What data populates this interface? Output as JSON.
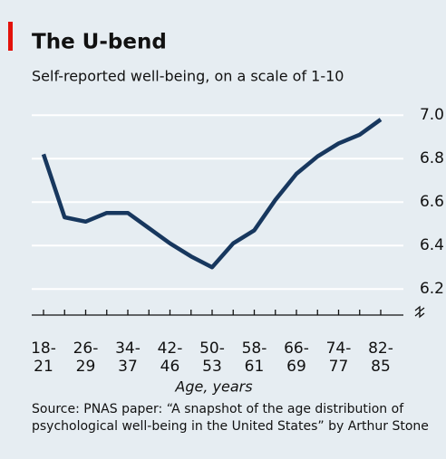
{
  "chart_data": {
    "type": "line",
    "title": "The U-bend",
    "subtitle": "Self-reported well-being, on a scale of 1-10",
    "x_label": "Age, years",
    "source": "Source: PNAS paper: “A snapshot of the age distribution of psychological well-being in the United States” by Arthur Stone",
    "categories": [
      "18-21",
      null,
      "26-29",
      null,
      "34-37",
      null,
      "42-46",
      null,
      "50-53",
      null,
      "58-61",
      null,
      "66-69",
      null,
      "74-77",
      null,
      "82-85"
    ],
    "series": [
      {
        "name": "Well-being",
        "color": "#17375e",
        "values": [
          6.82,
          6.53,
          6.51,
          6.55,
          6.55,
          6.48,
          6.41,
          6.35,
          6.3,
          6.41,
          6.47,
          6.61,
          6.73,
          6.81,
          6.87,
          6.91,
          6.98
        ]
      }
    ],
    "ylim": [
      6.08,
      7.08
    ],
    "yticks": [
      6.2,
      6.4,
      6.6,
      6.8,
      {
        "value": 7,
        "label": "7.0"
      }
    ],
    "grid": true
  }
}
